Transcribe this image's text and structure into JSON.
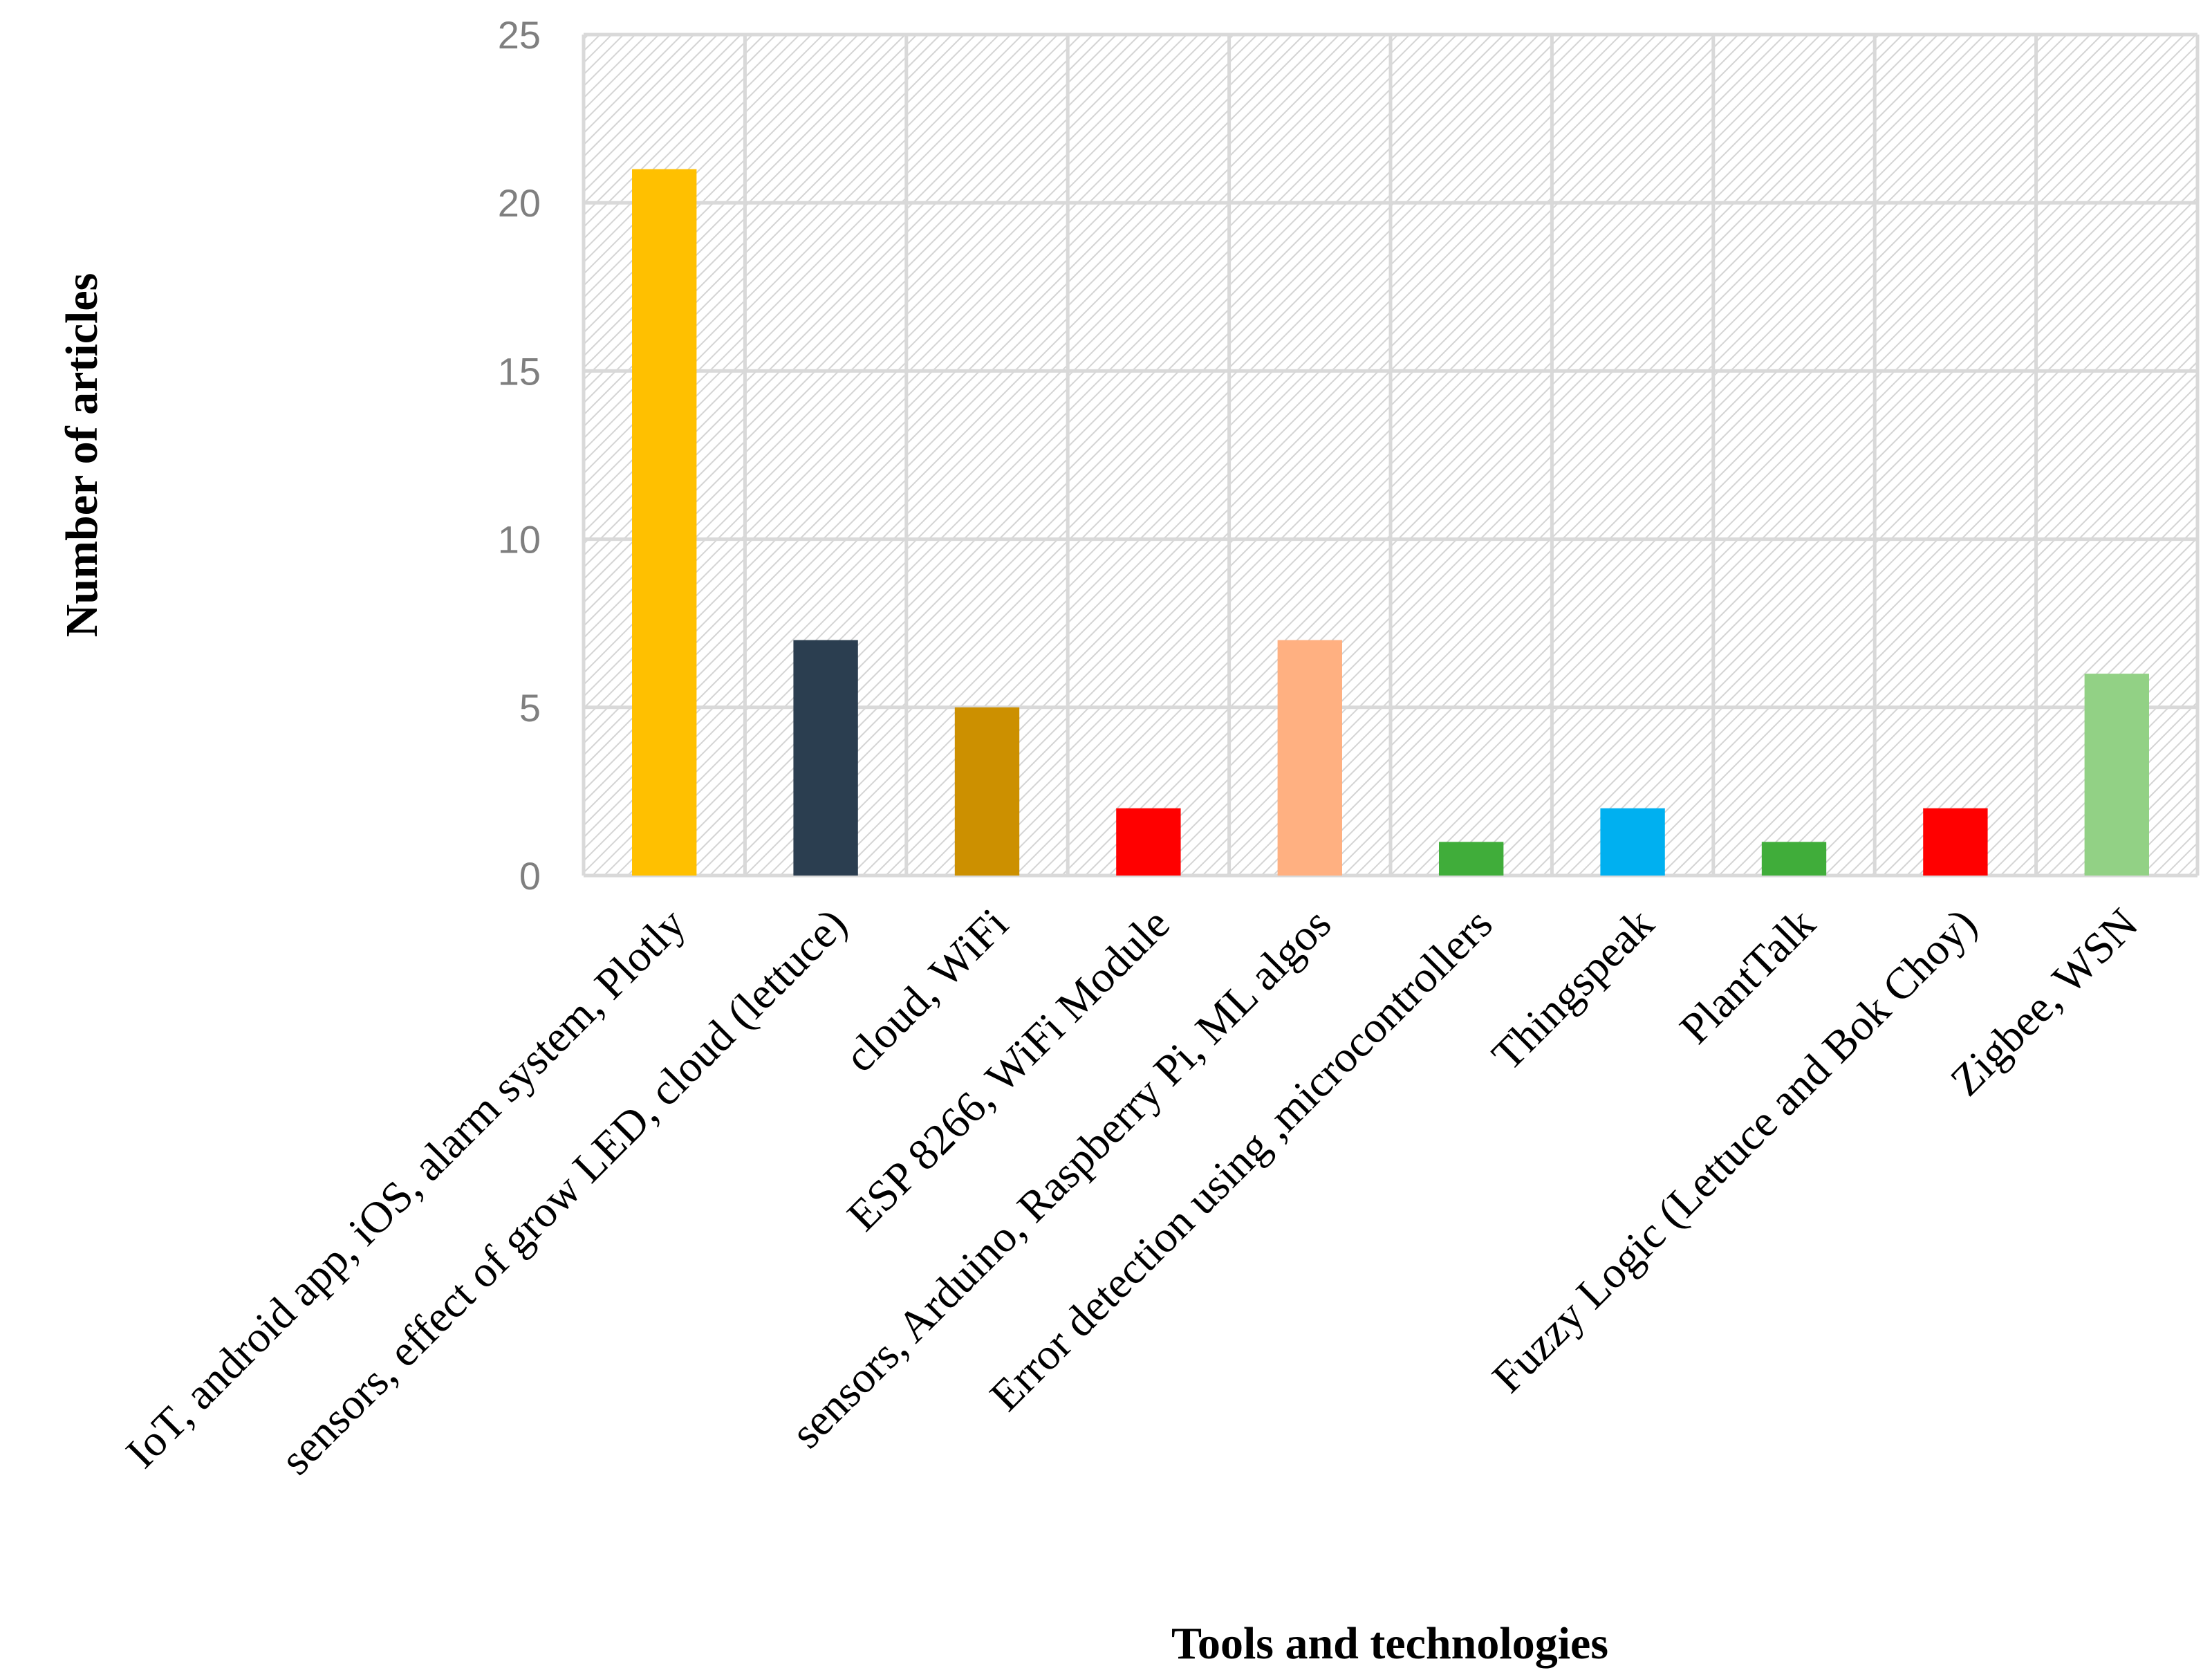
{
  "chart_data": {
    "type": "bar",
    "title": "",
    "xlabel": "Tools and technologies",
    "ylabel": "Number of articles",
    "ylim": [
      0,
      25
    ],
    "yticks": [
      0,
      5,
      10,
      15,
      20,
      25
    ],
    "grid": true,
    "legend": "none",
    "categories": [
      "IoT, android app, iOS, alarm system, Plotly",
      "sensors, effect of grow LED, cloud (lettuce)",
      "cloud, WiFi",
      "ESP 8266, WiFi Module",
      "sensors, Arduino, Raspberry Pi, ML algos",
      "Error detection using ,microcontrollers",
      "Thingspeak",
      "PlantTalk",
      "Fuzzy Logic (Lettuce and Bok Choy)",
      "Zigbee, WSN"
    ],
    "values": [
      21,
      7,
      5,
      2,
      7,
      1,
      2,
      1,
      2,
      6
    ],
    "colors": [
      "#FFC000",
      "#2B3E50",
      "#CC9000",
      "#FF0000",
      "#FFB081",
      "#40AD3A",
      "#00B0F0",
      "#40AD3A",
      "#FF0000",
      "#92D185"
    ],
    "background": {
      "plot_fill": "#ffffff",
      "hatch_color": "#d9d9d9",
      "grid_color": "#d9d9d9"
    }
  }
}
